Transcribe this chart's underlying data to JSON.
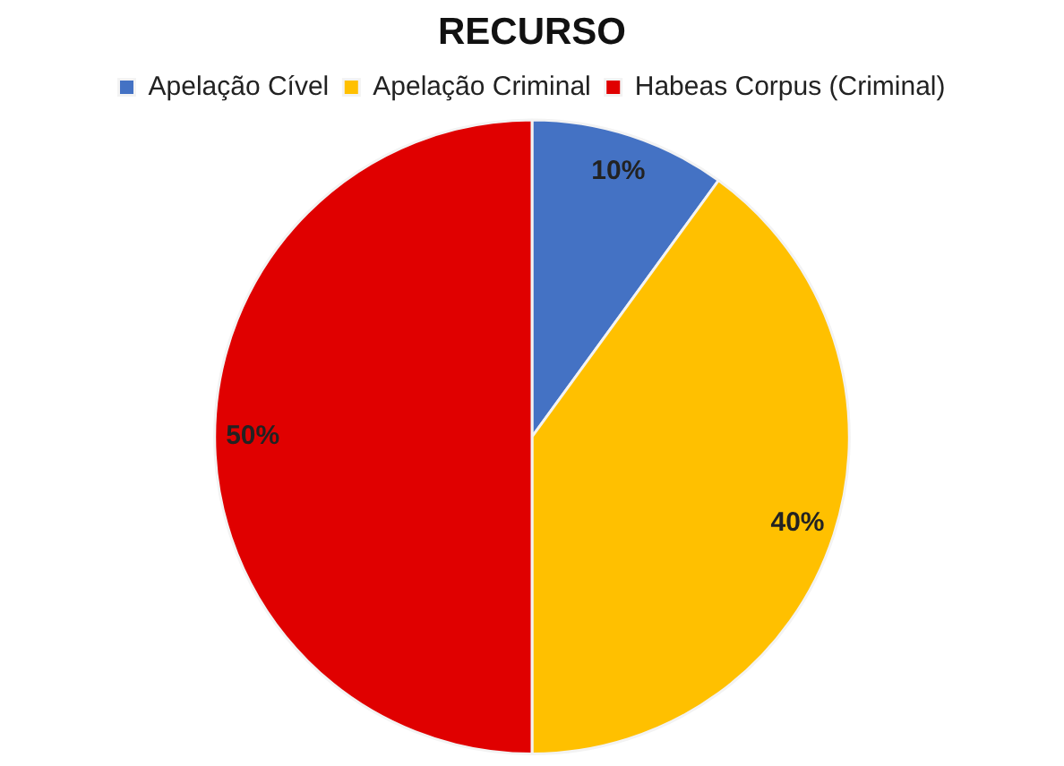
{
  "chart_data": {
    "type": "pie",
    "title": "RECURSO",
    "categories": [
      "Apelação Cível",
      "Apelação Criminal",
      "Habeas Corpus (Criminal)"
    ],
    "values": [
      10,
      40,
      50
    ],
    "colors": [
      "#4472c4",
      "#ffc000",
      "#e00000"
    ],
    "value_labels": [
      "10%",
      "40%",
      "50%"
    ],
    "legend": "top"
  }
}
